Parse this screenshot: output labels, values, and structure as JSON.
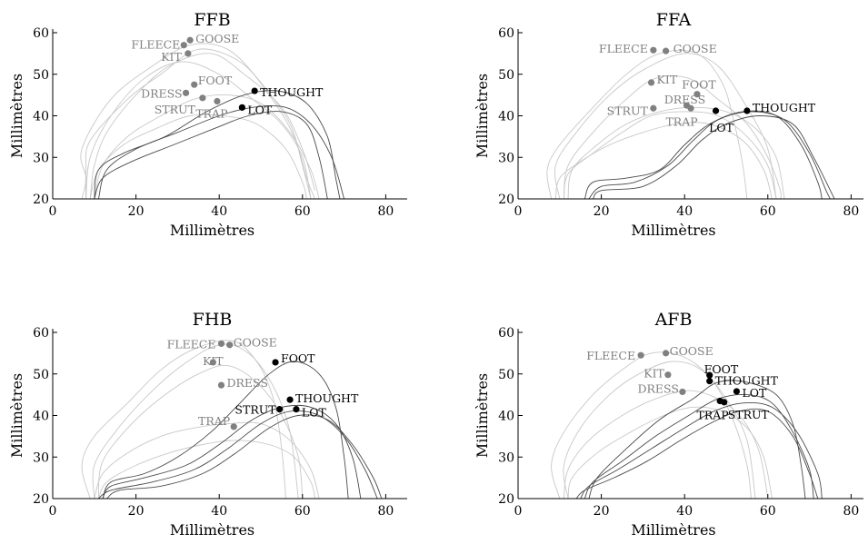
{
  "figure": {
    "xlabel": "Millimètres",
    "ylabel": "Millimètres",
    "xticks": [
      0,
      20,
      40,
      60,
      80
    ],
    "yticks": [
      20,
      30,
      40,
      50,
      60
    ],
    "xlim": [
      0,
      85
    ],
    "ylim": [
      20,
      60
    ]
  },
  "colors": {
    "highlight": "#000000",
    "other": "#808080",
    "trace_light": "#c8c8c8",
    "trace_dark": "#4a4a4a"
  },
  "chart_data": [
    {
      "type": "scatter",
      "title": "FFB",
      "points": [
        {
          "label": "FLEECE",
          "x": 31.5,
          "y": 57.0,
          "highlight": false
        },
        {
          "label": "GOOSE",
          "x": 33.0,
          "y": 58.2,
          "highlight": false
        },
        {
          "label": "KIT",
          "x": 32.5,
          "y": 55.0,
          "highlight": false
        },
        {
          "label": "FOOT",
          "x": 34.0,
          "y": 47.5,
          "highlight": false
        },
        {
          "label": "DRESS",
          "x": 32.0,
          "y": 45.5,
          "highlight": false
        },
        {
          "label": "STRUT",
          "x": 36.0,
          "y": 44.3,
          "highlight": false
        },
        {
          "label": "TRAP",
          "x": 39.5,
          "y": 43.5,
          "highlight": false
        },
        {
          "label": "THOUGHT",
          "x": 48.5,
          "y": 46.0,
          "highlight": true
        },
        {
          "label": "LOT",
          "x": 45.5,
          "y": 42.0,
          "highlight": true
        }
      ]
    },
    {
      "type": "scatter",
      "title": "FFA",
      "points": [
        {
          "label": "FLEECE",
          "x": 32.5,
          "y": 55.8,
          "highlight": false
        },
        {
          "label": "GOOSE",
          "x": 35.5,
          "y": 55.6,
          "highlight": false
        },
        {
          "label": "KIT",
          "x": 32.0,
          "y": 48.0,
          "highlight": false
        },
        {
          "label": "FOOT",
          "x": 43.0,
          "y": 45.2,
          "highlight": false
        },
        {
          "label": "DRESS",
          "x": 40.5,
          "y": 42.5,
          "highlight": false
        },
        {
          "label": "STRUT",
          "x": 32.5,
          "y": 41.8,
          "highlight": false
        },
        {
          "label": "TRAP",
          "x": 41.5,
          "y": 41.8,
          "highlight": false
        },
        {
          "label": "LOT",
          "x": 47.5,
          "y": 41.2,
          "highlight": true
        },
        {
          "label": "THOUGHT",
          "x": 55.0,
          "y": 41.2,
          "highlight": true
        }
      ]
    },
    {
      "type": "scatter",
      "title": "FHB",
      "points": [
        {
          "label": "FLEECE",
          "x": 40.5,
          "y": 57.3,
          "highlight": false
        },
        {
          "label": "GOOSE",
          "x": 42.5,
          "y": 57.0,
          "highlight": false
        },
        {
          "label": "KIT",
          "x": 38.5,
          "y": 52.8,
          "highlight": false
        },
        {
          "label": "FOOT",
          "x": 53.5,
          "y": 52.8,
          "highlight": true
        },
        {
          "label": "DRESS",
          "x": 40.5,
          "y": 47.3,
          "highlight": false
        },
        {
          "label": "TRAP",
          "x": 43.5,
          "y": 37.3,
          "highlight": false
        },
        {
          "label": "STRUT",
          "x": 54.5,
          "y": 41.5,
          "highlight": true
        },
        {
          "label": "THOUGHT",
          "x": 57.0,
          "y": 43.8,
          "highlight": true
        },
        {
          "label": "LOT",
          "x": 58.5,
          "y": 41.5,
          "highlight": true
        }
      ]
    },
    {
      "type": "scatter",
      "title": "AFB",
      "points": [
        {
          "label": "FLEECE",
          "x": 29.5,
          "y": 54.5,
          "highlight": false
        },
        {
          "label": "GOOSE",
          "x": 35.5,
          "y": 55.0,
          "highlight": false
        },
        {
          "label": "KIT",
          "x": 36.0,
          "y": 49.8,
          "highlight": false
        },
        {
          "label": "DRESS",
          "x": 39.5,
          "y": 45.7,
          "highlight": false
        },
        {
          "label": "FOOT",
          "x": 46.0,
          "y": 49.7,
          "highlight": true
        },
        {
          "label": "THOUGHT",
          "x": 46.0,
          "y": 48.3,
          "highlight": true
        },
        {
          "label": "LOT",
          "x": 52.5,
          "y": 45.8,
          "highlight": true
        },
        {
          "label": "TRAP",
          "x": 48.5,
          "y": 43.5,
          "highlight": true
        },
        {
          "label": "STRUT",
          "x": 49.5,
          "y": 43.2,
          "highlight": true
        }
      ]
    }
  ]
}
